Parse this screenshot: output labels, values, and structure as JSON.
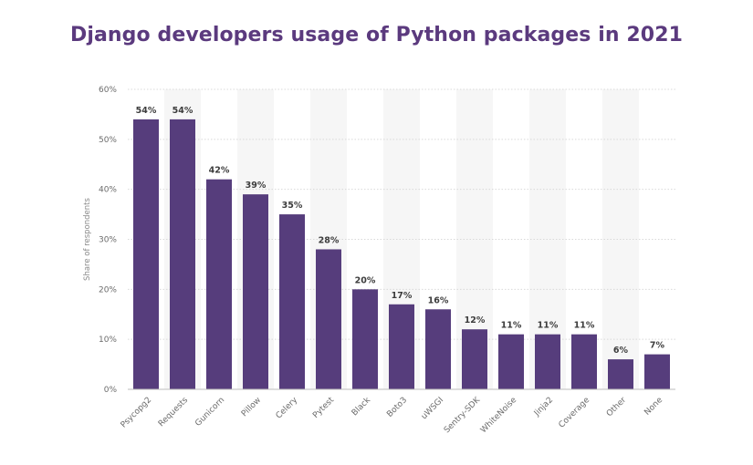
{
  "chart_data": {
    "type": "bar",
    "title": "Django developers usage of Python packages in 2021",
    "xlabel": "",
    "ylabel": "Share of respondents",
    "ylim": [
      0,
      60
    ],
    "yticks": [
      "0%",
      "10%",
      "20%",
      "30%",
      "40%",
      "50%",
      "60%"
    ],
    "ytick_values": [
      0,
      10,
      20,
      30,
      40,
      50,
      60
    ],
    "categories": [
      "Psycopg2",
      "Requests",
      "Gunicorn",
      "Pillow",
      "Celery",
      "Pytest",
      "Black",
      "Boto3",
      "uWSGI",
      "Sentry-SDK",
      "WhiteNoise",
      "Jinja2",
      "Coverage",
      "Other",
      "None"
    ],
    "values": [
      54,
      54,
      42,
      39,
      35,
      28,
      20,
      17,
      16,
      12,
      11,
      11,
      11,
      6,
      7
    ],
    "value_labels": [
      "54%",
      "54%",
      "42%",
      "39%",
      "35%",
      "28%",
      "20%",
      "17%",
      "16%",
      "12%",
      "11%",
      "11%",
      "11%",
      "6%",
      "7%"
    ],
    "grid": true,
    "bar_color": "#563d7c",
    "band_color": "#f6f6f6",
    "grid_color": "#d9d9d9"
  }
}
